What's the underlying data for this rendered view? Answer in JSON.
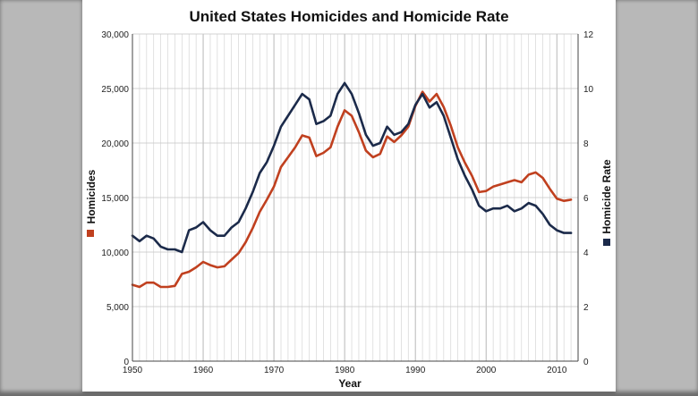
{
  "chart_data": {
    "type": "line",
    "title": "United States Homicides and Homicide Rate",
    "xlabel": "Year",
    "ylabel": "Homicides",
    "y2label": "Homicide Rate",
    "xlim": [
      1950,
      2013
    ],
    "ylim": [
      0,
      30000
    ],
    "y2lim": [
      0,
      12
    ],
    "x_ticks": [
      1950,
      1960,
      1970,
      1980,
      1990,
      2000,
      2010
    ],
    "y_ticks": [
      0,
      5000,
      10000,
      15000,
      20000,
      25000,
      30000
    ],
    "y_tick_labels": [
      "0",
      "5,000",
      "10,000",
      "15,000",
      "20,000",
      "25,000",
      "30,000"
    ],
    "y2_ticks": [
      0,
      2,
      4,
      6,
      8,
      10,
      12
    ],
    "grid": true,
    "colors": {
      "homicides": "#c0401f",
      "rate": "#1b2a4a",
      "grid": "#d6d6d6"
    },
    "series": [
      {
        "name": "Homicides",
        "axis": "left",
        "color": "#c0401f",
        "x": [
          1950,
          1951,
          1952,
          1953,
          1954,
          1955,
          1956,
          1957,
          1958,
          1959,
          1960,
          1961,
          1962,
          1963,
          1964,
          1965,
          1966,
          1967,
          1968,
          1969,
          1970,
          1971,
          1972,
          1973,
          1974,
          1975,
          1976,
          1977,
          1978,
          1979,
          1980,
          1981,
          1982,
          1983,
          1984,
          1985,
          1986,
          1987,
          1988,
          1989,
          1990,
          1991,
          1992,
          1993,
          1994,
          1995,
          1996,
          1997,
          1998,
          1999,
          2000,
          2001,
          2002,
          2003,
          2004,
          2005,
          2006,
          2007,
          2008,
          2009,
          2010,
          2011,
          2012
        ],
        "values": [
          7000,
          6800,
          7200,
          7200,
          6800,
          6800,
          6900,
          8000,
          8200,
          8600,
          9100,
          8800,
          8600,
          8700,
          9300,
          9900,
          10900,
          12200,
          13700,
          14800,
          16000,
          17800,
          18700,
          19600,
          20700,
          20500,
          18800,
          19100,
          19600,
          21500,
          23000,
          22500,
          21000,
          19300,
          18700,
          19000,
          20600,
          20100,
          20700,
          21500,
          23400,
          24700,
          23800,
          24500,
          23300,
          21600,
          19600,
          18200,
          17000,
          15500,
          15600,
          16000,
          16200,
          16400,
          16600,
          16400,
          17100,
          17300,
          16800,
          15800,
          14900,
          14700,
          14800
        ]
      },
      {
        "name": "Homicide Rate",
        "axis": "right",
        "color": "#1b2a4a",
        "x": [
          1950,
          1951,
          1952,
          1953,
          1954,
          1955,
          1956,
          1957,
          1958,
          1959,
          1960,
          1961,
          1962,
          1963,
          1964,
          1965,
          1966,
          1967,
          1968,
          1969,
          1970,
          1971,
          1972,
          1973,
          1974,
          1975,
          1976,
          1977,
          1978,
          1979,
          1980,
          1981,
          1982,
          1983,
          1984,
          1985,
          1986,
          1987,
          1988,
          1989,
          1990,
          1991,
          1992,
          1993,
          1994,
          1995,
          1996,
          1997,
          1998,
          1999,
          2000,
          2001,
          2002,
          2003,
          2004,
          2005,
          2006,
          2007,
          2008,
          2009,
          2010,
          2011,
          2012
        ],
        "values": [
          4.6,
          4.4,
          4.6,
          4.5,
          4.2,
          4.1,
          4.1,
          4.0,
          4.8,
          4.9,
          5.1,
          4.8,
          4.6,
          4.6,
          4.9,
          5.1,
          5.6,
          6.2,
          6.9,
          7.3,
          7.9,
          8.6,
          9.0,
          9.4,
          9.8,
          9.6,
          8.7,
          8.8,
          9.0,
          9.8,
          10.2,
          9.8,
          9.1,
          8.3,
          7.9,
          8.0,
          8.6,
          8.3,
          8.4,
          8.7,
          9.4,
          9.8,
          9.3,
          9.5,
          9.0,
          8.2,
          7.4,
          6.8,
          6.3,
          5.7,
          5.5,
          5.6,
          5.6,
          5.7,
          5.5,
          5.6,
          5.8,
          5.7,
          5.4,
          5.0,
          4.8,
          4.7,
          4.7
        ]
      }
    ]
  }
}
